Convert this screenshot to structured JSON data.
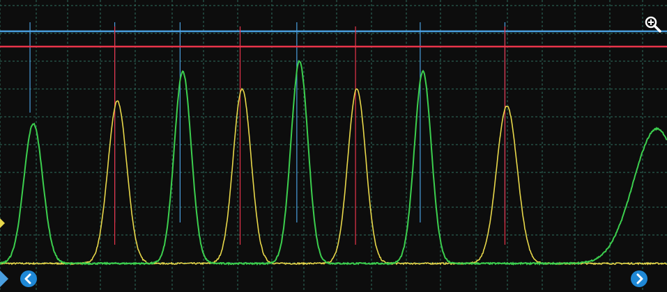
{
  "colors": {
    "background": "#0d0d0d",
    "grid": "#2e6e5e",
    "channel_blue": "#4a9fe0",
    "channel_red": "#e8344a",
    "channel_yellow": "#e8d84a",
    "channel_green": "#3ccf4e",
    "button": "#1f88d6"
  },
  "icons": {
    "zoom": "zoom-in-icon",
    "prev": "chevron-left-icon",
    "next": "chevron-right-icon"
  },
  "chart_data": {
    "type": "line",
    "grid": true,
    "grid_divisions": {
      "x": 11,
      "y": 9
    },
    "series": [
      {
        "channel": "blue",
        "kind": "level",
        "level": 0.93,
        "pulses": [
          0.045,
          0.172,
          0.27,
          0.445,
          0.63,
          0.757
        ]
      },
      {
        "channel": "red",
        "kind": "level",
        "level": 0.88,
        "pulses": [
          0.172,
          0.36,
          0.533,
          0.757
        ]
      },
      {
        "channel": "yellow",
        "kind": "peaks",
        "baseline": 0.0,
        "peaks": [
          {
            "x": 0.176,
            "height": 0.65,
            "width": 0.02
          },
          {
            "x": 0.363,
            "height": 0.7,
            "width": 0.019
          },
          {
            "x": 0.535,
            "height": 0.7,
            "width": 0.019
          },
          {
            "x": 0.76,
            "height": 0.63,
            "width": 0.022
          }
        ]
      },
      {
        "channel": "green",
        "kind": "peaks",
        "baseline": 0.0,
        "peaks": [
          {
            "x": 0.05,
            "height": 0.56,
            "width": 0.02
          },
          {
            "x": 0.274,
            "height": 0.77,
            "width": 0.018
          },
          {
            "x": 0.449,
            "height": 0.81,
            "width": 0.018
          },
          {
            "x": 0.634,
            "height": 0.77,
            "width": 0.018
          },
          {
            "x": 0.985,
            "height": 0.54,
            "width": 0.05
          }
        ]
      }
    ]
  }
}
